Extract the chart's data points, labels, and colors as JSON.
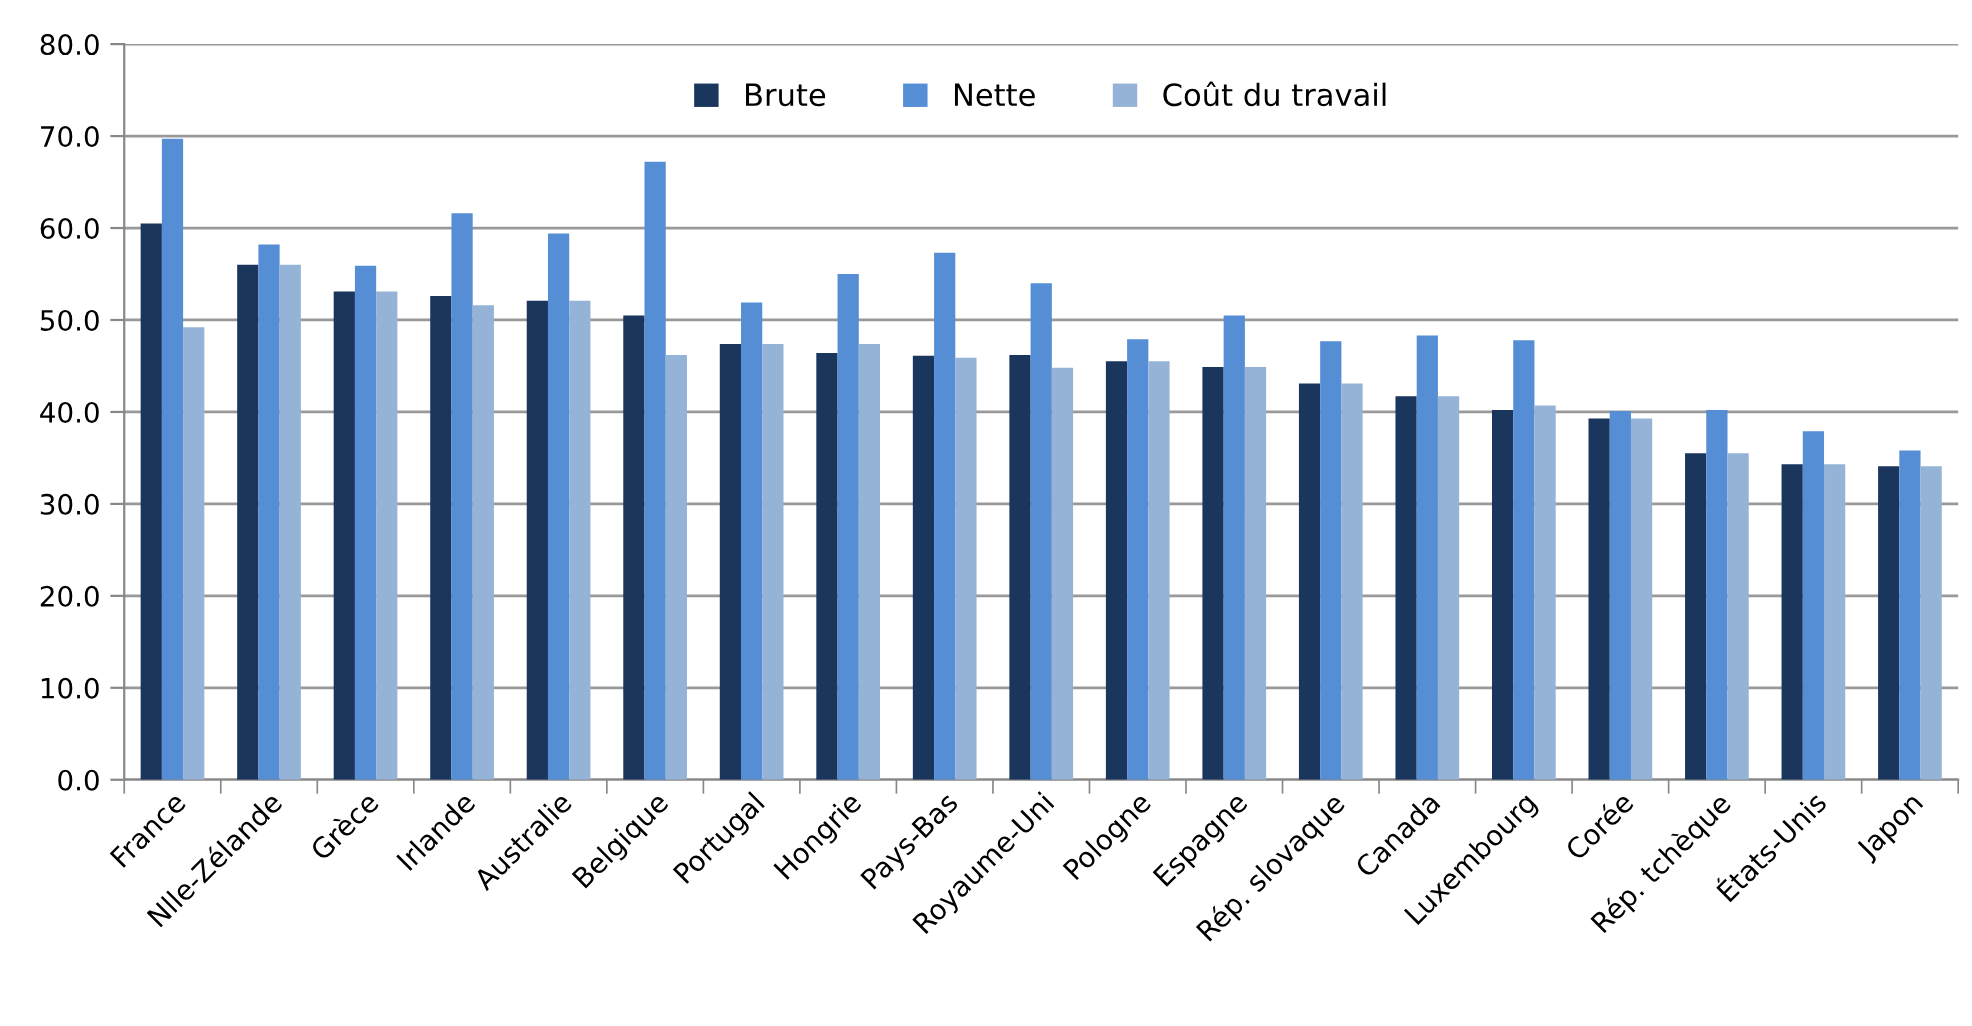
{
  "chart_data": {
    "type": "bar",
    "categories": [
      "France",
      "Nlle-Zélande",
      "Grèce",
      "Irlande",
      "Australie",
      "Belgique",
      "Portugal",
      "Hongrie",
      "Pays-Bas",
      "Royaume-Uni",
      "Pologne",
      "Espagne",
      "Rép. slovaque",
      "Canada",
      "Luxembourg",
      "Corée",
      "Rép. tchèque",
      "États-Unis",
      "Japon"
    ],
    "series": [
      {
        "name": "Brute",
        "color": "#1b365d",
        "values": [
          60.5,
          56.0,
          53.1,
          52.6,
          52.1,
          50.5,
          47.4,
          46.4,
          46.1,
          46.2,
          45.5,
          44.9,
          43.1,
          41.7,
          40.2,
          39.3,
          35.5,
          34.3,
          34.1
        ]
      },
      {
        "name": "Nette",
        "color": "#558ed5",
        "values": [
          69.7,
          58.2,
          55.9,
          61.6,
          59.4,
          67.2,
          51.9,
          55.0,
          57.3,
          54.0,
          47.9,
          50.5,
          47.7,
          48.3,
          47.8,
          40.1,
          40.2,
          37.9,
          35.8
        ]
      },
      {
        "name": "Coût du travail",
        "color": "#95b3d7",
        "values": [
          49.2,
          56.0,
          53.1,
          51.6,
          52.1,
          46.2,
          47.4,
          47.4,
          45.9,
          44.8,
          45.5,
          44.9,
          43.1,
          41.7,
          40.7,
          39.3,
          35.5,
          34.3,
          34.1
        ]
      }
    ],
    "ylim": [
      0,
      80
    ],
    "yticks": [
      {
        "value": 0,
        "label": "0.0"
      },
      {
        "value": 10,
        "label": "10.0"
      },
      {
        "value": 20,
        "label": "20.0"
      },
      {
        "value": 30,
        "label": "30.0"
      },
      {
        "value": 40,
        "label": "40.0"
      },
      {
        "value": 50,
        "label": "50.0"
      },
      {
        "value": 60,
        "label": "60.0"
      },
      {
        "value": 70,
        "label": "70.0"
      },
      {
        "value": 80,
        "label": "80.0"
      }
    ],
    "grid": "y",
    "legend": "top"
  }
}
